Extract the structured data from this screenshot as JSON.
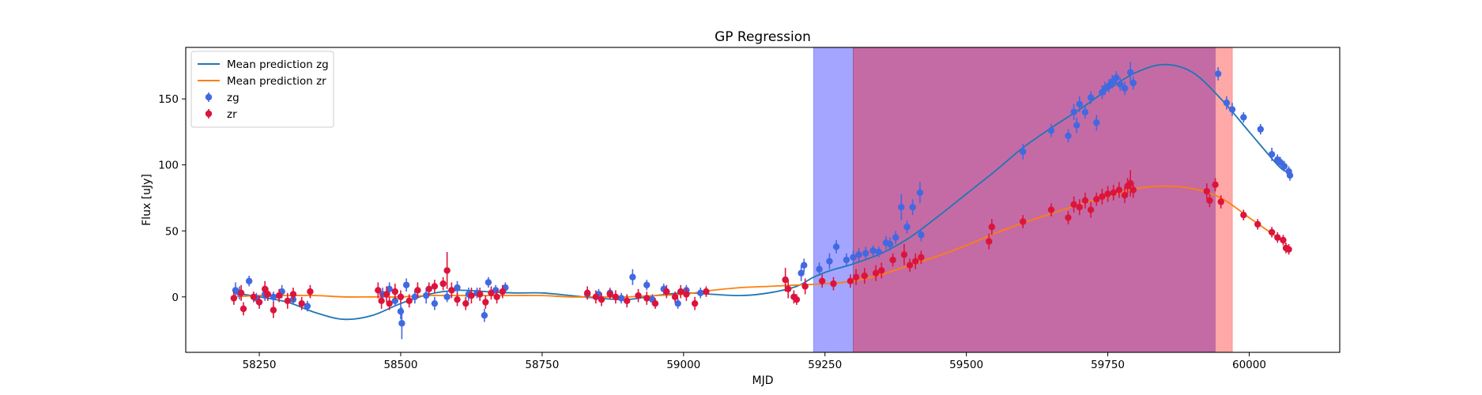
{
  "chart_data": {
    "type": "scatter",
    "title": "GP Regression",
    "xlabel": "MJD",
    "ylabel": "Flux [uJy]",
    "xlim": [
      58120,
      60160
    ],
    "ylim": [
      -42,
      189
    ],
    "xticks": [
      58250,
      58500,
      58750,
      59000,
      59250,
      59500,
      59750,
      60000
    ],
    "yticks": [
      0,
      50,
      100,
      150
    ],
    "grid": false,
    "legend_position": "top-left",
    "colors": {
      "zg_points": "#4169e1",
      "zr_points": "#dc143c",
      "mean_zg": "#1f77b4",
      "mean_zr": "#ff7f0e",
      "span_blue": "#a3a5ff",
      "span_red": "#ffa8a8",
      "span_overlap": "#c46ba5"
    },
    "shaded_regions": [
      {
        "band": "zg",
        "x_start": 59230,
        "x_end": 59940
      },
      {
        "band": "zr",
        "x_start": 59300,
        "x_end": 59970
      }
    ],
    "legend": [
      {
        "label": "Mean prediction zg",
        "kind": "line",
        "color": "#1f77b4"
      },
      {
        "label": "Mean prediction zr",
        "kind": "line",
        "color": "#ff7f0e"
      },
      {
        "label": "zg",
        "kind": "errorbar",
        "color": "#4169e1"
      },
      {
        "label": "zr",
        "kind": "errorbar",
        "color": "#dc143c"
      }
    ],
    "series": [
      {
        "name": "Mean prediction zg",
        "kind": "line",
        "color": "#1f77b4",
        "x": [
          58205,
          58250,
          58300,
          58350,
          58400,
          58450,
          58500,
          58550,
          58600,
          58650,
          58700,
          58750,
          58800,
          58850,
          58900,
          58950,
          59000,
          59050,
          59100,
          59150,
          59200,
          59230,
          59260,
          59300,
          59350,
          59400,
          59450,
          59500,
          59550,
          59600,
          59650,
          59700,
          59750,
          59800,
          59850,
          59900,
          59950,
          60000,
          60050,
          60065
        ],
        "y": [
          3,
          0,
          -4,
          -12,
          -17,
          -14,
          -5,
          2,
          5,
          4,
          3,
          3,
          1,
          -1,
          -2,
          1,
          3,
          2,
          1,
          3,
          8,
          15,
          20,
          25,
          33,
          45,
          61,
          78,
          95,
          113,
          128,
          142,
          157,
          170,
          176,
          170,
          150,
          125,
          100,
          95
        ]
      },
      {
        "name": "Mean prediction zr",
        "kind": "line",
        "color": "#ff7f0e",
        "x": [
          58205,
          58250,
          58300,
          58350,
          58400,
          58450,
          58500,
          58550,
          58600,
          58650,
          58700,
          58750,
          58800,
          58850,
          58900,
          58950,
          59000,
          59050,
          59100,
          59150,
          59200,
          59250,
          59300,
          59350,
          59400,
          59450,
          59500,
          59550,
          59600,
          59650,
          59700,
          59750,
          59800,
          59850,
          59900,
          59950,
          60000,
          60050,
          60065
        ],
        "y": [
          0,
          1,
          1,
          1,
          0,
          0,
          0,
          1,
          1,
          1,
          1,
          1,
          0,
          0,
          0,
          1,
          2,
          5,
          7,
          8,
          9,
          10,
          12,
          17,
          24,
          31,
          39,
          48,
          56,
          63,
          70,
          76,
          82,
          84,
          82,
          75,
          60,
          45,
          40
        ]
      },
      {
        "name": "zg",
        "kind": "errorbar",
        "color": "#4169e1",
        "points": [
          [
            58208,
            5,
            6
          ],
          [
            58215,
            3,
            5
          ],
          [
            58232,
            12,
            4
          ],
          [
            58245,
            -1,
            4
          ],
          [
            58260,
            2,
            5
          ],
          [
            58275,
            0,
            4
          ],
          [
            58290,
            4,
            5
          ],
          [
            58310,
            -2,
            4
          ],
          [
            58335,
            -7,
            4
          ],
          [
            58468,
            2,
            5
          ],
          [
            58480,
            6,
            5
          ],
          [
            58490,
            -3,
            4
          ],
          [
            58500,
            -11,
            6
          ],
          [
            58502,
            -20,
            12
          ],
          [
            58510,
            9,
            5
          ],
          [
            58525,
            0,
            5
          ],
          [
            58545,
            1,
            6
          ],
          [
            58560,
            -5,
            5
          ],
          [
            58582,
            0,
            4
          ],
          [
            58600,
            7,
            5
          ],
          [
            58620,
            2,
            5
          ],
          [
            58635,
            3,
            4
          ],
          [
            58648,
            -14,
            5
          ],
          [
            58655,
            11,
            4
          ],
          [
            58668,
            5,
            4
          ],
          [
            58685,
            7,
            4
          ],
          [
            58830,
            2,
            4
          ],
          [
            58850,
            2,
            4
          ],
          [
            58870,
            3,
            4
          ],
          [
            58890,
            -1,
            4
          ],
          [
            58910,
            15,
            6
          ],
          [
            58935,
            9,
            4
          ],
          [
            58945,
            -2,
            4
          ],
          [
            58965,
            6,
            4
          ],
          [
            58990,
            -5,
            4
          ],
          [
            59005,
            5,
            4
          ],
          [
            59030,
            3,
            4
          ],
          [
            59208,
            18,
            6
          ],
          [
            59213,
            24,
            5
          ],
          [
            59240,
            21,
            5
          ],
          [
            59258,
            27,
            6
          ],
          [
            59270,
            38,
            5
          ],
          [
            59288,
            28,
            5
          ],
          [
            59300,
            30,
            5
          ],
          [
            59310,
            32,
            5
          ],
          [
            59322,
            33,
            5
          ],
          [
            59335,
            35,
            4
          ],
          [
            59345,
            34,
            4
          ],
          [
            59358,
            41,
            5
          ],
          [
            59365,
            40,
            5
          ],
          [
            59375,
            45,
            5
          ],
          [
            59385,
            68,
            10
          ],
          [
            59395,
            53,
            5
          ],
          [
            59405,
            68,
            6
          ],
          [
            59418,
            79,
            8
          ],
          [
            59420,
            47,
            5
          ],
          [
            59600,
            110,
            6
          ],
          [
            59650,
            126,
            5
          ],
          [
            59680,
            122,
            5
          ],
          [
            59690,
            140,
            6
          ],
          [
            59695,
            130,
            6
          ],
          [
            59700,
            146,
            6
          ],
          [
            59710,
            140,
            5
          ],
          [
            59720,
            151,
            5
          ],
          [
            59730,
            132,
            6
          ],
          [
            59740,
            155,
            5
          ],
          [
            59745,
            158,
            5
          ],
          [
            59752,
            160,
            5
          ],
          [
            59758,
            163,
            5
          ],
          [
            59765,
            166,
            5
          ],
          [
            59772,
            161,
            5
          ],
          [
            59780,
            158,
            5
          ],
          [
            59790,
            170,
            8
          ],
          [
            59795,
            162,
            5
          ],
          [
            59945,
            169,
            5
          ],
          [
            59960,
            147,
            5
          ],
          [
            59970,
            142,
            5
          ],
          [
            59990,
            136,
            4
          ],
          [
            60020,
            127,
            4
          ],
          [
            60040,
            108,
            5
          ],
          [
            60050,
            104,
            4
          ],
          [
            60055,
            102,
            4
          ],
          [
            60062,
            99,
            4
          ],
          [
            60070,
            95,
            4
          ],
          [
            60072,
            92,
            4
          ]
        ]
      },
      {
        "name": "zr",
        "kind": "errorbar",
        "color": "#dc143c",
        "points": [
          [
            58205,
            -1,
            5
          ],
          [
            58218,
            3,
            6
          ],
          [
            58222,
            -9,
            5
          ],
          [
            58240,
            0,
            4
          ],
          [
            58250,
            -4,
            5
          ],
          [
            58260,
            6,
            6
          ],
          [
            58265,
            2,
            5
          ],
          [
            58275,
            -10,
            6
          ],
          [
            58285,
            1,
            5
          ],
          [
            58300,
            -3,
            6
          ],
          [
            58310,
            2,
            5
          ],
          [
            58325,
            -5,
            5
          ],
          [
            58340,
            4,
            5
          ],
          [
            58460,
            5,
            6
          ],
          [
            58466,
            -3,
            6
          ],
          [
            58475,
            2,
            6
          ],
          [
            58480,
            -5,
            5
          ],
          [
            58490,
            4,
            6
          ],
          [
            58500,
            0,
            5
          ],
          [
            58515,
            -3,
            5
          ],
          [
            58530,
            5,
            6
          ],
          [
            58550,
            6,
            5
          ],
          [
            58560,
            8,
            5
          ],
          [
            58575,
            10,
            5
          ],
          [
            58582,
            20,
            14
          ],
          [
            58590,
            5,
            6
          ],
          [
            58600,
            -2,
            5
          ],
          [
            58615,
            -5,
            5
          ],
          [
            58625,
            1,
            6
          ],
          [
            58640,
            2,
            5
          ],
          [
            58650,
            -4,
            5
          ],
          [
            58660,
            3,
            5
          ],
          [
            58670,
            0,
            5
          ],
          [
            58680,
            4,
            5
          ],
          [
            58830,
            3,
            5
          ],
          [
            58845,
            0,
            5
          ],
          [
            58855,
            -2,
            5
          ],
          [
            58870,
            2,
            4
          ],
          [
            58880,
            0,
            5
          ],
          [
            58900,
            -3,
            5
          ],
          [
            58920,
            1,
            5
          ],
          [
            58935,
            -1,
            5
          ],
          [
            58950,
            -5,
            4
          ],
          [
            58970,
            4,
            5
          ],
          [
            58985,
            0,
            4
          ],
          [
            58995,
            4,
            5
          ],
          [
            59005,
            2,
            5
          ],
          [
            59020,
            -5,
            5
          ],
          [
            59040,
            4,
            4
          ],
          [
            59180,
            13,
            9
          ],
          [
            59185,
            6,
            7
          ],
          [
            59195,
            0,
            5
          ],
          [
            59200,
            -2,
            4
          ],
          [
            59215,
            8,
            6
          ],
          [
            59245,
            12,
            5
          ],
          [
            59265,
            10,
            5
          ],
          [
            59295,
            12,
            5
          ],
          [
            59305,
            15,
            6
          ],
          [
            59320,
            16,
            6
          ],
          [
            59340,
            18,
            6
          ],
          [
            59350,
            20,
            6
          ],
          [
            59370,
            28,
            5
          ],
          [
            59390,
            32,
            8
          ],
          [
            59400,
            24,
            5
          ],
          [
            59410,
            27,
            6
          ],
          [
            59420,
            30,
            5
          ],
          [
            59540,
            42,
            6
          ],
          [
            59545,
            53,
            6
          ],
          [
            59600,
            57,
            5
          ],
          [
            59650,
            66,
            5
          ],
          [
            59680,
            60,
            5
          ],
          [
            59690,
            70,
            6
          ],
          [
            59700,
            68,
            6
          ],
          [
            59710,
            73,
            6
          ],
          [
            59720,
            66,
            6
          ],
          [
            59730,
            74,
            5
          ],
          [
            59740,
            76,
            6
          ],
          [
            59750,
            78,
            6
          ],
          [
            59760,
            79,
            6
          ],
          [
            59770,
            81,
            6
          ],
          [
            59780,
            77,
            6
          ],
          [
            59785,
            84,
            6
          ],
          [
            59790,
            86,
            10
          ],
          [
            59795,
            81,
            6
          ],
          [
            59925,
            80,
            6
          ],
          [
            59930,
            73,
            5
          ],
          [
            59940,
            85,
            5
          ],
          [
            59950,
            72,
            5
          ],
          [
            59990,
            62,
            4
          ],
          [
            60015,
            55,
            4
          ],
          [
            60040,
            49,
            4
          ],
          [
            60050,
            45,
            4
          ],
          [
            60060,
            43,
            4
          ],
          [
            60065,
            37,
            4
          ],
          [
            60070,
            36,
            4
          ]
        ]
      }
    ]
  }
}
